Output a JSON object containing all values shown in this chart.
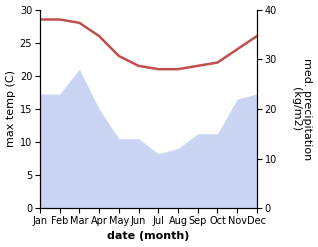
{
  "months": [
    "Jan",
    "Feb",
    "Mar",
    "Apr",
    "May",
    "Jun",
    "Jul",
    "Aug",
    "Sep",
    "Oct",
    "Nov",
    "Dec"
  ],
  "temperature": [
    28.5,
    28.5,
    28.0,
    26.0,
    23.0,
    21.5,
    21.0,
    21.0,
    21.5,
    22.0,
    24.0,
    26.0
  ],
  "precipitation": [
    23,
    23,
    28,
    20,
    14,
    14,
    11,
    12,
    15,
    15,
    22,
    23
  ],
  "temp_color": "#c0504d",
  "precip_color": "#b8c8f0",
  "precip_alpha": 0.75,
  "temp_ylim": [
    0,
    30
  ],
  "precip_ylim": [
    0,
    40
  ],
  "left_ylim": [
    0,
    30
  ],
  "left_yticks": [
    0,
    5,
    10,
    15,
    20,
    25,
    30
  ],
  "right_yticks": [
    0,
    10,
    20,
    30,
    40
  ],
  "ylabel_left": "max temp (C)",
  "ylabel_right": "med. precipitation\n(kg/m2)",
  "xlabel": "date (month)",
  "xlabel_fontsize": 8,
  "ylabel_fontsize": 8,
  "tick_fontsize": 7,
  "temp_linewidth": 1.8,
  "background_color": "#ffffff",
  "figsize": [
    3.18,
    2.47
  ],
  "dpi": 100
}
